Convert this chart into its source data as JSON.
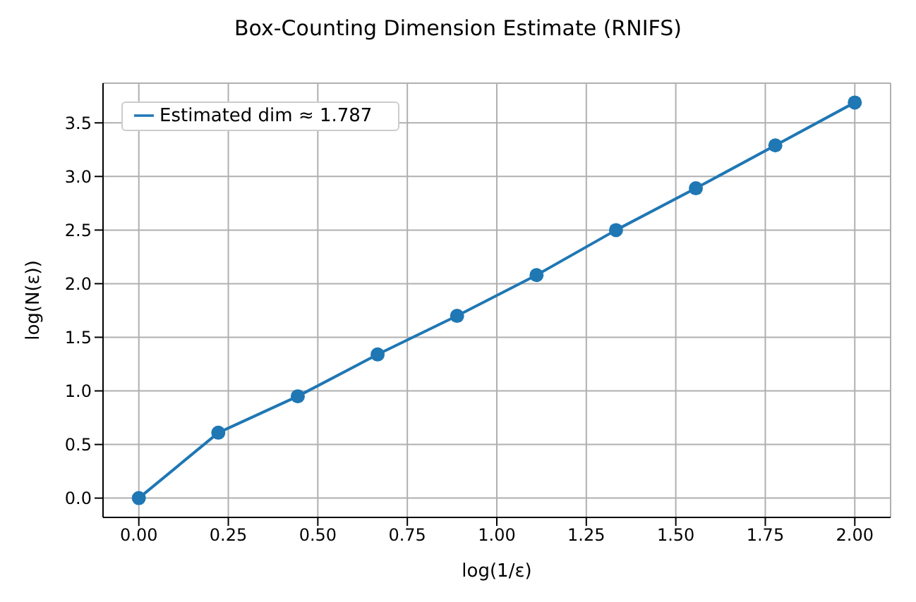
{
  "chart_data": {
    "type": "line",
    "title": "Box-Counting Dimension Estimate (RNIFS)",
    "xlabel": "log(1/ε)",
    "ylabel": "log(N(ε))",
    "x": [
      0,
      0.222,
      0.444,
      0.667,
      0.889,
      1.111,
      1.333,
      1.556,
      1.778,
      2.0
    ],
    "series": [
      {
        "name": "Estimated dim ≈ 1.787",
        "color": "#1f77b4",
        "values": [
          0,
          0.61,
          0.95,
          1.34,
          1.7,
          2.08,
          2.5,
          2.89,
          3.29,
          3.69
        ]
      }
    ],
    "xlim": [
      -0.1,
      2.1
    ],
    "xticks": [
      {
        "value": 0,
        "label": "0.00"
      },
      {
        "value": 0.25,
        "label": "0.25"
      },
      {
        "value": 0.5,
        "label": "0.50"
      },
      {
        "value": 0.75,
        "label": "0.75"
      },
      {
        "value": 1,
        "label": "1.00"
      },
      {
        "value": 1.25,
        "label": "1.25"
      },
      {
        "value": 1.5,
        "label": "1.50"
      },
      {
        "value": 1.75,
        "label": "1.75"
      },
      {
        "value": 2,
        "label": "2.00"
      }
    ],
    "ylim": [
      -0.18,
      3.87
    ],
    "yticks": [
      {
        "value": 0,
        "label": "0.0"
      },
      {
        "value": 0.5,
        "label": "0.5"
      },
      {
        "value": 1,
        "label": "1.0"
      },
      {
        "value": 1.5,
        "label": "1.5"
      },
      {
        "value": 2,
        "label": "2.0"
      },
      {
        "value": 2.5,
        "label": "2.5"
      },
      {
        "value": 3,
        "label": "3.0"
      },
      {
        "value": 3.5,
        "label": "3.5"
      }
    ],
    "grid": true,
    "legend": "top left",
    "marker": "circle",
    "line_style": "solid"
  }
}
